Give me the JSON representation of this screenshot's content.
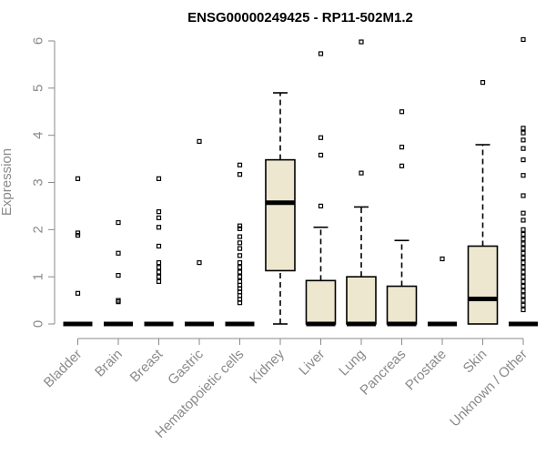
{
  "chart_data": {
    "type": "box",
    "title": "ENSG00000249425 - RP11-502M1.2",
    "xlabel": "",
    "ylabel": "Expression",
    "ylim": [
      0,
      6
    ],
    "yticks": [
      0,
      1,
      2,
      3,
      4,
      5,
      6
    ],
    "grid": false,
    "colors": {
      "box_fill": "#ede7cf",
      "stroke": "#000000",
      "axis": "#8a8a8a"
    },
    "categories": [
      "Bladder",
      "Brain",
      "Breast",
      "Gastric",
      "Hematopoietic cells",
      "Kidney",
      "Liver",
      "Lung",
      "Pancreas",
      "Prostate",
      "Skin",
      "Unknown / Other"
    ],
    "boxes": [
      {
        "min": 0,
        "q1": 0,
        "median": 0,
        "q3": 0,
        "max": 0,
        "outliers": [
          0.65,
          1.88,
          1.93,
          3.08
        ]
      },
      {
        "min": 0,
        "q1": 0,
        "median": 0,
        "q3": 0,
        "max": 0,
        "outliers": [
          0.47,
          0.5,
          1.03,
          1.5,
          2.15
        ]
      },
      {
        "min": 0,
        "q1": 0,
        "median": 0,
        "q3": 0,
        "max": 0,
        "outliers": [
          0.9,
          1.0,
          1.1,
          1.2,
          1.3,
          1.65,
          2.05,
          2.25,
          2.38,
          3.08
        ]
      },
      {
        "min": 0,
        "q1": 0,
        "median": 0,
        "q3": 0,
        "max": 0,
        "outliers": [
          1.3,
          3.87
        ]
      },
      {
        "min": 0,
        "q1": 0,
        "median": 0,
        "q3": 0,
        "max": 0,
        "outliers": [
          0.45,
          0.52,
          0.6,
          0.68,
          0.75,
          0.82,
          0.9,
          1.0,
          1.1,
          1.2,
          1.3,
          1.45,
          1.6,
          1.72,
          1.85,
          2.02,
          2.08,
          3.17,
          3.37
        ]
      },
      {
        "min": 0,
        "q1": 1.13,
        "median": 2.57,
        "q3": 3.48,
        "max": 4.9,
        "outliers": []
      },
      {
        "min": 0,
        "q1": 0,
        "median": 0,
        "q3": 0.92,
        "max": 2.05,
        "outliers": [
          2.5,
          3.58,
          3.95,
          5.73
        ]
      },
      {
        "min": 0,
        "q1": 0,
        "median": 0,
        "q3": 1.0,
        "max": 2.48,
        "outliers": [
          3.2,
          5.98
        ]
      },
      {
        "min": 0,
        "q1": 0,
        "median": 0,
        "q3": 0.8,
        "max": 1.77,
        "outliers": [
          3.35,
          3.75,
          4.5
        ]
      },
      {
        "min": 0,
        "q1": 0,
        "median": 0,
        "q3": 0,
        "max": 0,
        "outliers": [
          1.38
        ]
      },
      {
        "min": 0,
        "q1": 0,
        "median": 0.53,
        "q3": 1.65,
        "max": 3.8,
        "outliers": [
          5.12
        ]
      },
      {
        "min": 0,
        "q1": 0,
        "median": 0,
        "q3": 0,
        "max": 0,
        "outliers": [
          0.3,
          0.4,
          0.5,
          0.6,
          0.7,
          0.8,
          0.9,
          1.0,
          1.1,
          1.2,
          1.3,
          1.4,
          1.5,
          1.6,
          1.7,
          1.8,
          1.9,
          2.0,
          2.2,
          2.35,
          2.72,
          3.15,
          3.48,
          3.72,
          3.9,
          4.05,
          4.15,
          6.03
        ]
      }
    ]
  }
}
